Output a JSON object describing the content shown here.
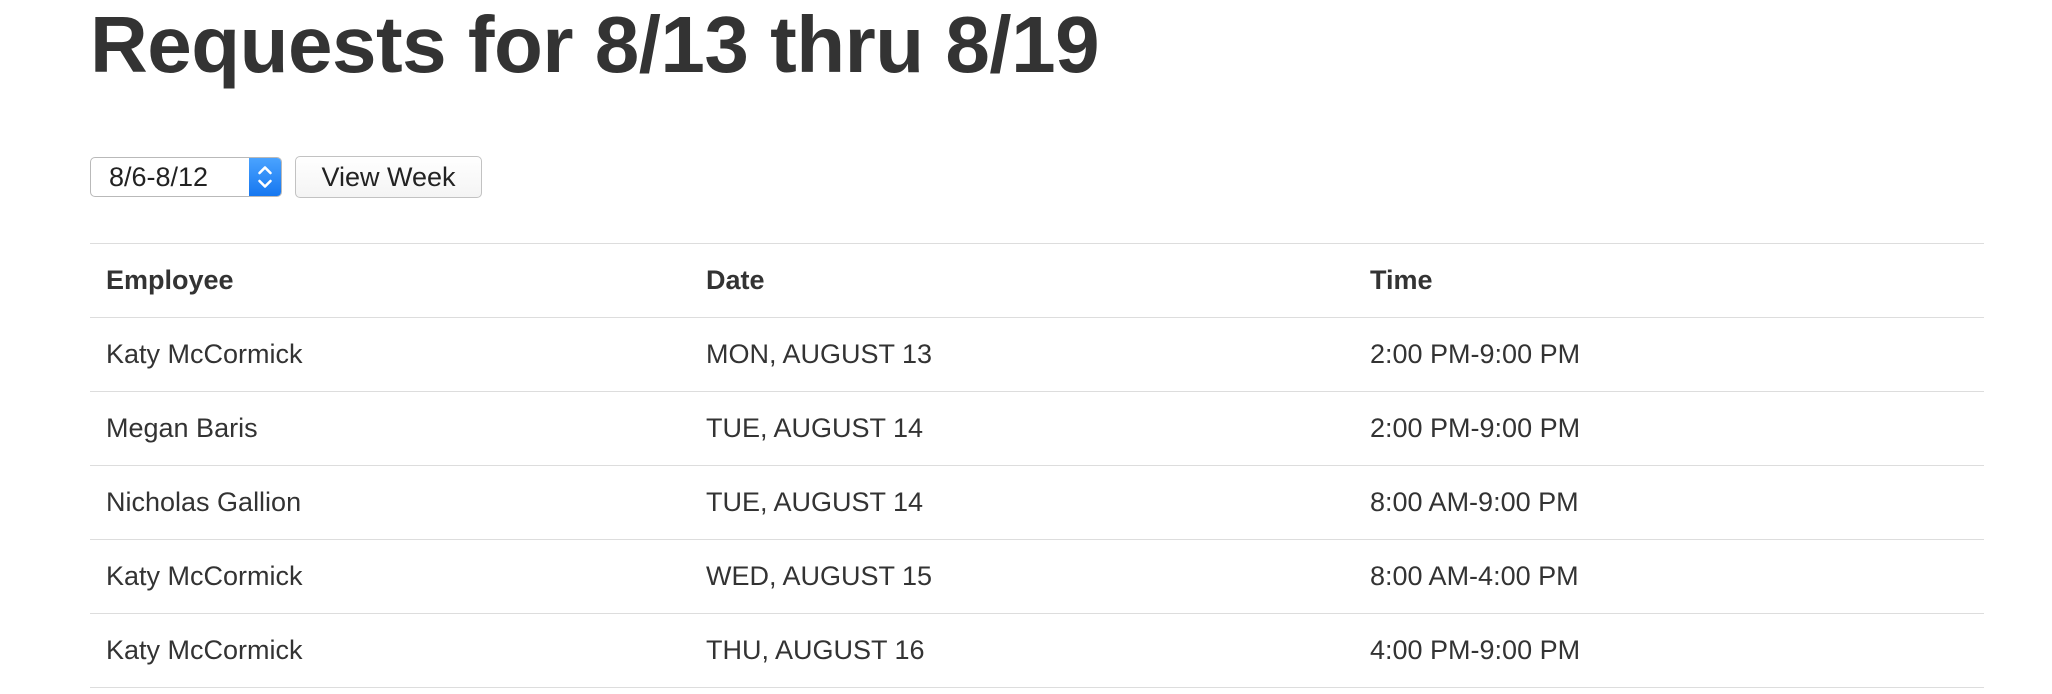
{
  "page": {
    "title": "Requests for 8/13 thru 8/19"
  },
  "controls": {
    "week_select": {
      "selected": "8/6-8/12",
      "icon": "chevron-up-down-icon",
      "accent_color": "#1a7cf5"
    },
    "view_week_label": "View Week"
  },
  "table": {
    "headers": {
      "employee": "Employee",
      "date": "Date",
      "time": "Time"
    },
    "rows": [
      {
        "employee": "Katy McCormick",
        "date": "MON, AUGUST 13",
        "time": "2:00 PM-9:00 PM"
      },
      {
        "employee": "Megan Baris",
        "date": "TUE, AUGUST 14",
        "time": "2:00 PM-9:00 PM"
      },
      {
        "employee": "Nicholas Gallion",
        "date": "TUE, AUGUST 14",
        "time": "8:00 AM-9:00 PM"
      },
      {
        "employee": "Katy McCormick",
        "date": "WED, AUGUST 15",
        "time": "8:00 AM-4:00 PM"
      },
      {
        "employee": "Katy McCormick",
        "date": "THU, AUGUST 16",
        "time": "4:00 PM-9:00 PM"
      }
    ]
  }
}
